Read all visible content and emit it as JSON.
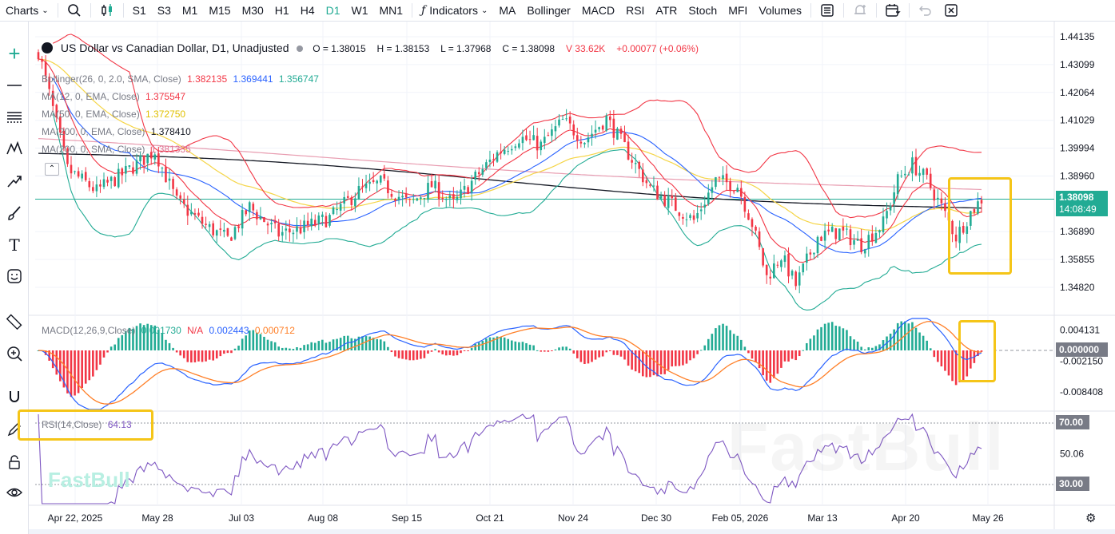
{
  "toolbar": {
    "charts_label": "Charts",
    "timeframes": [
      "S1",
      "S3",
      "M1",
      "M15",
      "M30",
      "H1",
      "H4",
      "D1",
      "W1",
      "MN1"
    ],
    "active_timeframe": "D1",
    "indicators_label": "Indicators",
    "indicator_shortcuts": [
      "MA",
      "Bollinger",
      "MACD",
      "RSI",
      "ATR",
      "Stoch",
      "MFI",
      "Volumes"
    ]
  },
  "main_legend": {
    "symbol": "US Dollar vs Canadian Dollar, D1, Unadjusted",
    "open": "O = 1.38015",
    "high": "H = 1.38153",
    "low": "L = 1.37968",
    "close": "C = 1.38098",
    "volume": "V 33.62K",
    "change": "+0.00077 (+0.06%)"
  },
  "indicator_legends": {
    "bollinger": {
      "label": "Bollinger(26, 0, 2.0, SMA, Close)",
      "upper": "1.382135",
      "middle": "1.369441",
      "lower": "1.356747"
    },
    "ma12": {
      "label": "MA(12, 0, EMA, Close)",
      "value": "1.375547"
    },
    "ma50": {
      "label": "MA(50, 0, EMA, Close)",
      "value": "1.372750"
    },
    "ma200ema": {
      "label": "MA(200, 0, EMA, Close)",
      "value": "1.378410"
    },
    "ma200sma": {
      "label": "MA(200, 0, SMA, Close)",
      "value": "1.381335"
    }
  },
  "macd_legend": {
    "label": "MACD(12,26,9,Close)",
    "v1": "0.001730",
    "v2": "N/A",
    "v3": "0.002443",
    "v4": "0.000712"
  },
  "rsi_legend": {
    "label": "RSI(14,Close)",
    "value": "64.13"
  },
  "price_axis": {
    "ticks": [
      "1.44135",
      "1.43099",
      "1.42064",
      "1.41029",
      "1.39994",
      "1.38960",
      "1.36890",
      "1.35855",
      "1.34820"
    ],
    "current_price": "1.38098",
    "countdown": "14:08:49"
  },
  "macd_axis": {
    "ticks": [
      "0.004131",
      "-0.002150",
      "-0.008408"
    ],
    "current": "0.000000"
  },
  "rsi_axis": {
    "ticks": [
      "50.06"
    ],
    "upper": "70.00",
    "lower": "30.00"
  },
  "time_axis": [
    "Apr 22, 2025",
    "May 28",
    "Jul 03",
    "Aug 08",
    "Sep 15",
    "Oct 21",
    "Nov 24",
    "Dec 30",
    "Feb 05, 2026",
    "Mar 13",
    "Apr 20",
    "May 26"
  ],
  "watermark": "FastBull",
  "colors": {
    "up": "#22ab94",
    "down": "#f23645",
    "bb_band": "#f23645",
    "bb_lower": "#22ab94",
    "ma12": "#f23645",
    "ma50": "#f5d547",
    "ma200ema": "#131722",
    "ma200sma": "#e89cb0",
    "macd": "#2962ff",
    "signal": "#ff7f27",
    "rsi": "#7e57c2",
    "highlight": "#f5c518"
  }
}
